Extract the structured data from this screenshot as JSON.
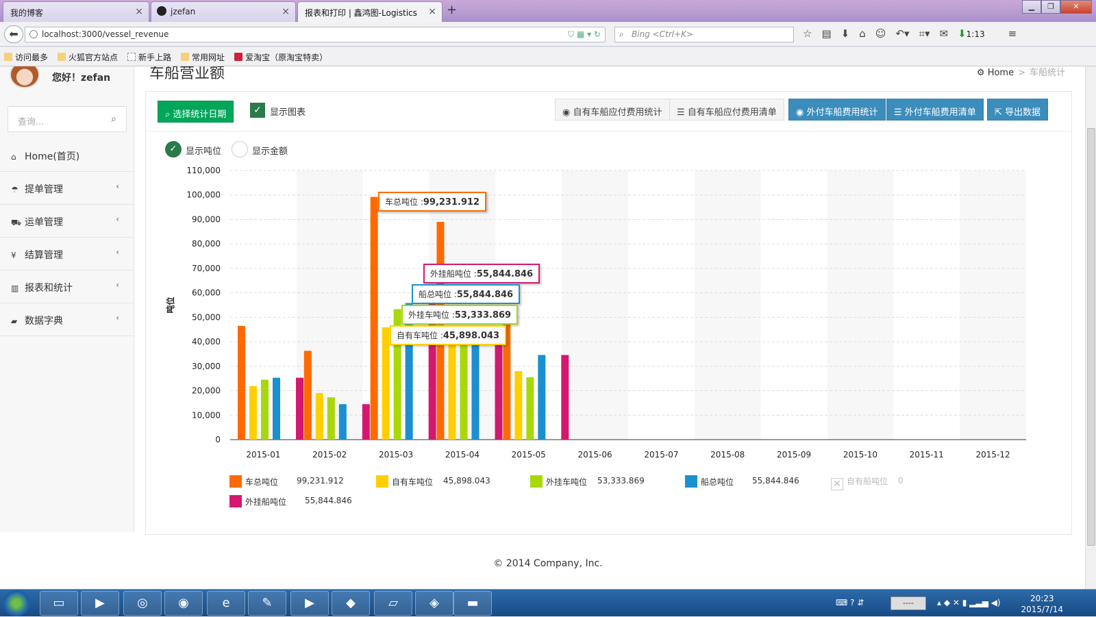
{
  "browser": {
    "tabs": [
      {
        "title": "我的博客"
      },
      {
        "title": "jzefan"
      },
      {
        "title": "报表和打印 | 鑫鸿图-Logistics"
      }
    ],
    "url": "localhost:3000/vessel_revenue",
    "search_placeholder": "Bing <Ctrl+K>",
    "download_time": "1:13",
    "bookmarks": [
      "访问最多",
      "火狐官方站点",
      "新手上路",
      "常用网址",
      "爱淘宝（原淘宝特卖）"
    ]
  },
  "sidebar": {
    "greeting": "您好！zefan",
    "search_placeholder": "查询...",
    "items": [
      {
        "label": "Home(首页)",
        "icon": "home-icon"
      },
      {
        "label": "提单管理",
        "icon": "umbrella-icon"
      },
      {
        "label": "运单管理",
        "icon": "truck-icon"
      },
      {
        "label": "结算管理",
        "icon": "yen-icon"
      },
      {
        "label": "报表和统计",
        "icon": "bar-chart-icon"
      },
      {
        "label": "数据字典",
        "icon": "folder-icon"
      }
    ]
  },
  "page": {
    "title": "车船营业额",
    "breadcrumb": {
      "home": "Home",
      "current": "车船统计"
    }
  },
  "toolbar": {
    "date_button": "选择统计日期",
    "show_chart": "显示图表",
    "own_vessel_stats": "自有车船应付费用统计",
    "own_vessel_list": "自有车船应付费用清单",
    "external_stats": "外付车船费用统计",
    "external_list": "外付车船费用清单",
    "export": "导出数据"
  },
  "radios": {
    "tonnage": "显示吨位",
    "amount": "显示金额"
  },
  "colors": {
    "green": "#00a65a",
    "blue": "#3c8dbc"
  },
  "chart_data": {
    "type": "bar",
    "categories": [
      "2015-01",
      "2015-02",
      "2015-03",
      "2015-04",
      "2015-05",
      "2015-06",
      "2015-07",
      "2015-08",
      "2015-09",
      "2015-10",
      "2015-11",
      "2015-12"
    ],
    "ylabel": "吨位",
    "ylim": [
      0,
      110000
    ],
    "yticks": [
      "0",
      "10,000",
      "20,000",
      "30,000",
      "40,000",
      "50,000",
      "60,000",
      "70,000",
      "80,000",
      "90,000",
      "100,000",
      "110,000"
    ],
    "series": [
      {
        "name": "车总吨位",
        "color": "#ff6a00",
        "total": "99,231.912",
        "values": [
          46500,
          36300,
          99231.912,
          89000,
          50000,
          0,
          0,
          0,
          0,
          0,
          0,
          0
        ]
      },
      {
        "name": "自有车吨位",
        "color": "#ffcf00",
        "total": "45,898.043",
        "values": [
          21900,
          19000,
          45898.043,
          45000,
          28000,
          0,
          0,
          0,
          0,
          0,
          0,
          0
        ]
      },
      {
        "name": "外挂车吨位",
        "color": "#a8d80c",
        "total": "53,333.869",
        "values": [
          24500,
          17300,
          53333.869,
          45000,
          25500,
          0,
          0,
          0,
          0,
          0,
          0,
          0
        ]
      },
      {
        "name": "船总吨位",
        "color": "#1a90d0",
        "total": "55,844.846",
        "values": [
          25300,
          14500,
          55844.846,
          46000,
          34600,
          0,
          0,
          0,
          0,
          0,
          0,
          0
        ]
      },
      {
        "name": "自有船吨位",
        "color": "#cccccc",
        "total": "0",
        "disabled": true,
        "values": [
          0,
          0,
          0,
          0,
          0,
          0,
          0,
          0,
          0,
          0,
          0,
          0
        ]
      },
      {
        "name": "外挂船吨位",
        "color": "#d4186f",
        "total": "55,844.846",
        "values": [
          25300,
          14500,
          55844.846,
          46000,
          34600,
          0,
          0,
          0,
          0,
          0,
          0,
          0
        ]
      }
    ],
    "tooltips": [
      {
        "label": "车总吨位 :",
        "value": "99,231.912",
        "color": "#ff6a00"
      },
      {
        "label": "外挂船吨位 :",
        "value": "55,844.846",
        "color": "#d4186f"
      },
      {
        "label": "船总吨位 :",
        "value": "55,844.846",
        "color": "#1a90d0"
      },
      {
        "label": "外挂车吨位 :",
        "value": "53,333.869",
        "color": "#a8d80c"
      },
      {
        "label": "自有车吨位 :",
        "value": "45,898.043",
        "color": "#ffcf00"
      }
    ]
  },
  "footer": {
    "copyright": "© 2014 Company, Inc."
  },
  "taskbar": {
    "time": "20:23",
    "date": "2015/7/14",
    "input_indicator": "----"
  }
}
